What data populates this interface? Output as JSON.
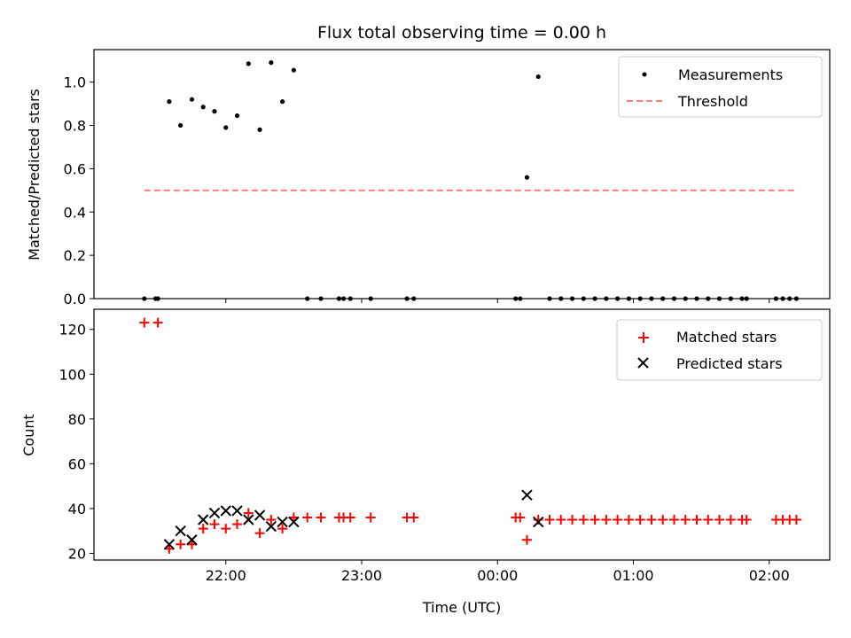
{
  "chart_data": {
    "type": "scatter",
    "title": "Flux total observing time = 0.00 h",
    "xlabel": "Time (UTC)",
    "x_ticks": [
      "22:00",
      "23:00",
      "00:00",
      "01:00",
      "02:00"
    ],
    "panels": [
      {
        "ylabel": "Matched/Predicted stars",
        "ylim": [
          0,
          1.15
        ],
        "y_ticks": [
          "0.0",
          "0.2",
          "0.4",
          "0.6",
          "0.8",
          "1.0"
        ],
        "legend_position": "upper-right",
        "series": [
          {
            "name": "Measurements",
            "marker": "dot",
            "color": "#000000",
            "points": [
              [
                "21:24",
                0.0
              ],
              [
                "21:29",
                0.0
              ],
              [
                "21:30",
                0.0
              ],
              [
                "21:35",
                0.91
              ],
              [
                "21:40",
                0.8
              ],
              [
                "21:45",
                0.92
              ],
              [
                "21:50",
                0.885
              ],
              [
                "21:55",
                0.865
              ],
              [
                "22:00",
                0.79
              ],
              [
                "22:05",
                0.845
              ],
              [
                "22:10",
                1.085
              ],
              [
                "22:15",
                0.78
              ],
              [
                "22:20",
                1.09
              ],
              [
                "22:25",
                0.91
              ],
              [
                "22:30",
                1.055
              ],
              [
                "22:36",
                0.0
              ],
              [
                "22:42",
                0.0
              ],
              [
                "22:50",
                0.0
              ],
              [
                "22:52",
                0.0
              ],
              [
                "22:55",
                0.0
              ],
              [
                "23:04",
                0.0
              ],
              [
                "23:20",
                0.0
              ],
              [
                "23:23",
                0.0
              ],
              [
                "00:08",
                0.0
              ],
              [
                "00:10",
                0.0
              ],
              [
                "00:13",
                0.56
              ],
              [
                "00:18",
                1.025
              ],
              [
                "00:23",
                0.0
              ],
              [
                "00:28",
                0.0
              ],
              [
                "00:33",
                0.0
              ],
              [
                "00:38",
                0.0
              ],
              [
                "00:43",
                0.0
              ],
              [
                "00:48",
                0.0
              ],
              [
                "00:53",
                0.0
              ],
              [
                "00:58",
                0.0
              ],
              [
                "01:03",
                0.0
              ],
              [
                "01:08",
                0.0
              ],
              [
                "01:13",
                0.0
              ],
              [
                "01:18",
                0.0
              ],
              [
                "01:23",
                0.0
              ],
              [
                "01:28",
                0.0
              ],
              [
                "01:33",
                0.0
              ],
              [
                "01:38",
                0.0
              ],
              [
                "01:43",
                0.0
              ],
              [
                "01:48",
                0.0
              ],
              [
                "01:50",
                0.0
              ],
              [
                "02:03",
                0.0
              ],
              [
                "02:06",
                0.0
              ],
              [
                "02:09",
                0.0
              ],
              [
                "02:12",
                0.0
              ]
            ]
          },
          {
            "name": "Threshold",
            "marker": "dashed-line",
            "color": "#ff7f7f",
            "points": [
              [
                "21:24",
                0.5
              ],
              [
                "02:12",
                0.5
              ]
            ]
          }
        ]
      },
      {
        "ylabel": "Count",
        "ylim": [
          17,
          129
        ],
        "y_ticks": [
          "20",
          "40",
          "60",
          "80",
          "100",
          "120"
        ],
        "legend_position": "upper-right",
        "series": [
          {
            "name": "Matched stars",
            "marker": "plus",
            "color": "#ff0000",
            "points": [
              [
                "21:24",
                123
              ],
              [
                "21:30",
                123
              ],
              [
                "21:35",
                22
              ],
              [
                "21:40",
                24
              ],
              [
                "21:45",
                24
              ],
              [
                "21:50",
                31
              ],
              [
                "21:55",
                33
              ],
              [
                "22:00",
                31
              ],
              [
                "22:05",
                33
              ],
              [
                "22:10",
                38
              ],
              [
                "22:15",
                29
              ],
              [
                "22:20",
                35
              ],
              [
                "22:25",
                31
              ],
              [
                "22:30",
                36
              ],
              [
                "22:36",
                36
              ],
              [
                "22:42",
                36
              ],
              [
                "22:50",
                36
              ],
              [
                "22:52",
                36
              ],
              [
                "22:55",
                36
              ],
              [
                "23:04",
                36
              ],
              [
                "23:20",
                36
              ],
              [
                "23:23",
                36
              ],
              [
                "00:08",
                36
              ],
              [
                "00:10",
                36
              ],
              [
                "00:13",
                26
              ],
              [
                "00:18",
                35
              ],
              [
                "00:23",
                35
              ],
              [
                "00:28",
                35
              ],
              [
                "00:33",
                35
              ],
              [
                "00:38",
                35
              ],
              [
                "00:43",
                35
              ],
              [
                "00:48",
                35
              ],
              [
                "00:53",
                35
              ],
              [
                "00:58",
                35
              ],
              [
                "01:03",
                35
              ],
              [
                "01:08",
                35
              ],
              [
                "01:13",
                35
              ],
              [
                "01:18",
                35
              ],
              [
                "01:23",
                35
              ],
              [
                "01:28",
                35
              ],
              [
                "01:33",
                35
              ],
              [
                "01:38",
                35
              ],
              [
                "01:43",
                35
              ],
              [
                "01:48",
                35
              ],
              [
                "01:50",
                35
              ],
              [
                "02:03",
                35
              ],
              [
                "02:06",
                35
              ],
              [
                "02:09",
                35
              ],
              [
                "02:12",
                35
              ]
            ]
          },
          {
            "name": "Predicted stars",
            "marker": "cross",
            "color": "#000000",
            "points": [
              [
                "21:35",
                24
              ],
              [
                "21:40",
                30
              ],
              [
                "21:45",
                26
              ],
              [
                "21:50",
                35
              ],
              [
                "21:55",
                38
              ],
              [
                "22:00",
                39
              ],
              [
                "22:05",
                39
              ],
              [
                "22:10",
                35
              ],
              [
                "22:15",
                37
              ],
              [
                "22:20",
                32
              ],
              [
                "22:25",
                34
              ],
              [
                "22:30",
                34
              ],
              [
                "00:13",
                46
              ],
              [
                "00:18",
                34
              ]
            ]
          }
        ]
      }
    ]
  }
}
